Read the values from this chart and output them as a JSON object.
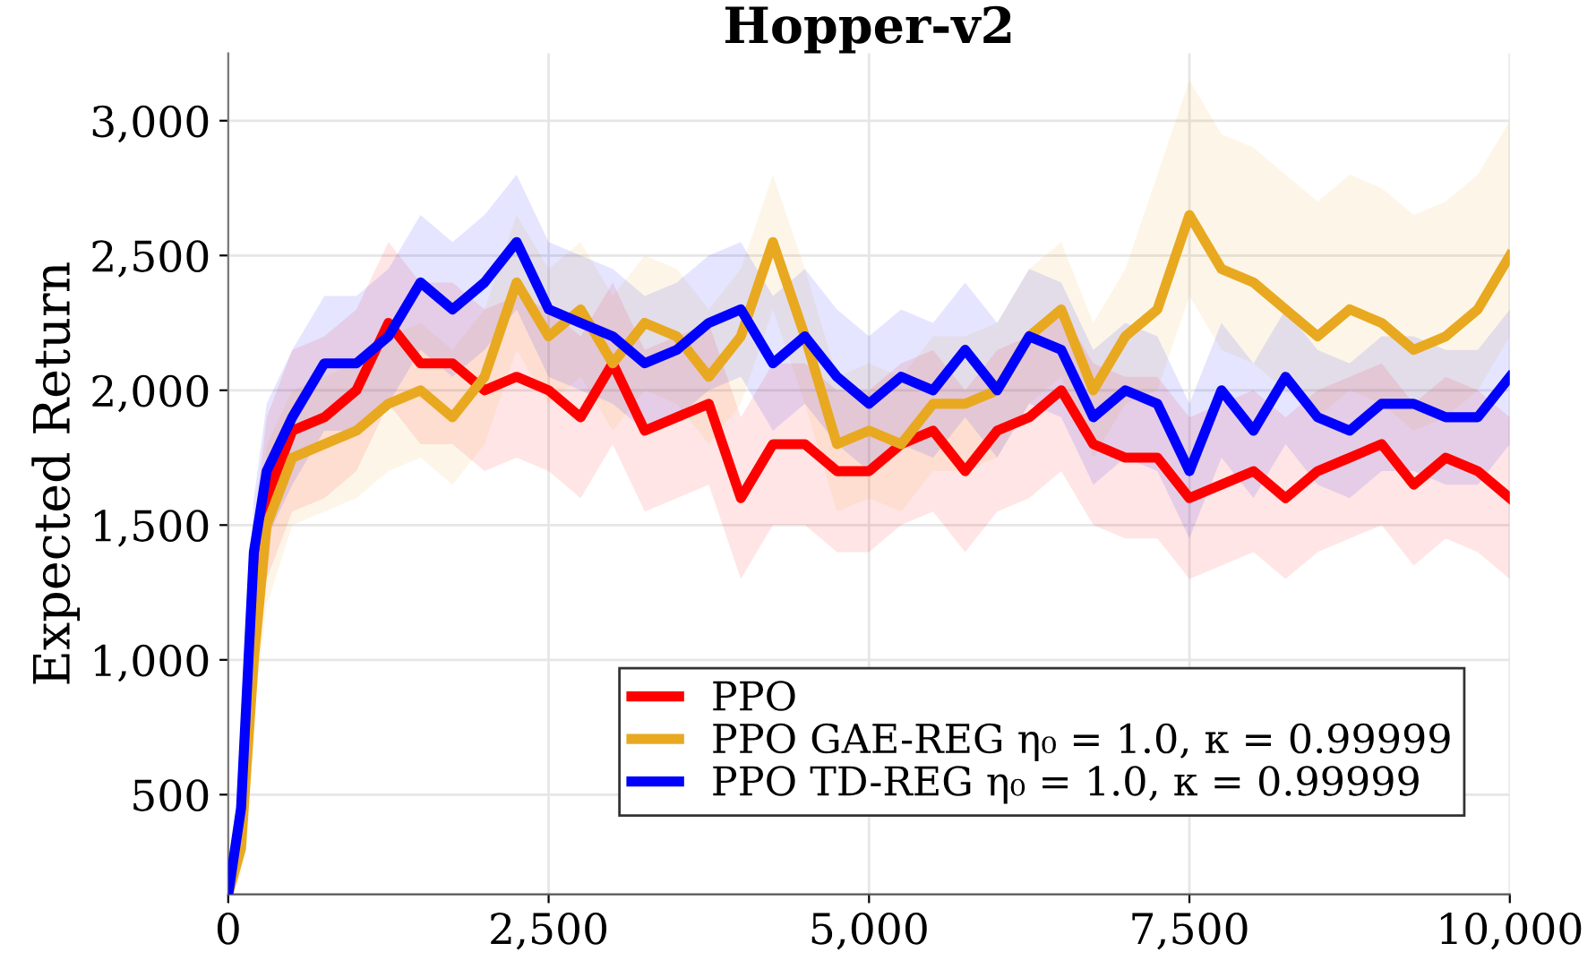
{
  "chart_data": {
    "type": "line",
    "title": "Hopper-v2",
    "ylabel": "Expected Return",
    "x": [
      0,
      100,
      200,
      300,
      500,
      750,
      1000,
      1250,
      1500,
      1750,
      2000,
      2250,
      2500,
      2750,
      3000,
      3250,
      3500,
      3750,
      4000,
      4250,
      4500,
      4750,
      5000,
      5250,
      5500,
      5750,
      6000,
      6250,
      6500,
      6750,
      7000,
      7250,
      7500,
      7750,
      8000,
      8250,
      8500,
      8750,
      9000,
      9250,
      9500,
      9750,
      10000
    ],
    "series": [
      {
        "name": "PPO",
        "color": "#ff0000",
        "values": [
          null,
          null,
          1300,
          1600,
          1850,
          1900,
          2000,
          2250,
          2100,
          2100,
          2000,
          2050,
          2000,
          1900,
          2100,
          1850,
          1900,
          1950,
          1600,
          1800,
          1800,
          1700,
          1700,
          1800,
          1850,
          1700,
          1850,
          1900,
          2000,
          1800,
          1750,
          1750,
          1600,
          1650,
          1700,
          1600,
          1700,
          1750,
          1800,
          1650,
          1750,
          1700,
          1600
        ],
        "lower": [
          130,
          300,
          1100,
          1300,
          1550,
          1600,
          1700,
          1950,
          1800,
          1800,
          1700,
          1750,
          1700,
          1600,
          1800,
          1550,
          1600,
          1650,
          1300,
          1500,
          1500,
          1400,
          1400,
          1500,
          1550,
          1400,
          1550,
          1600,
          1700,
          1500,
          1450,
          1450,
          1300,
          1350,
          1400,
          1300,
          1400,
          1450,
          1500,
          1350,
          1450,
          1400,
          1300
        ],
        "upper": [
          130,
          600,
          1500,
          1900,
          2150,
          2200,
          2300,
          2550,
          2400,
          2400,
          2300,
          2350,
          2300,
          2200,
          2400,
          2150,
          2200,
          2250,
          1900,
          2100,
          2100,
          2000,
          2000,
          2100,
          2150,
          2000,
          2150,
          2200,
          2300,
          2100,
          2050,
          2050,
          1900,
          1950,
          2000,
          1900,
          2000,
          2050,
          2100,
          1950,
          2050,
          2000,
          1900
        ]
      },
      {
        "name": "PPO GAE-REG η₀ = 1.0, κ = 0.99999",
        "color": "#e8a920",
        "values": [
          130,
          300,
          1000,
          1500,
          1750,
          1800,
          1850,
          1950,
          2000,
          1900,
          2050,
          2400,
          2200,
          2300,
          2100,
          2250,
          2200,
          2050,
          2200,
          2550,
          2200,
          1800,
          1850,
          1800,
          1950,
          1950,
          2000,
          2200,
          2300,
          2000,
          2200,
          2300,
          2650,
          2450,
          2400,
          2300,
          2200,
          2300,
          2250,
          2150,
          2200,
          2300,
          2500
        ],
        "lower": [
          130,
          200,
          800,
          1200,
          1500,
          1550,
          1600,
          1700,
          1750,
          1650,
          1800,
          2150,
          1950,
          2050,
          1850,
          2000,
          1950,
          1800,
          1950,
          2300,
          1950,
          1550,
          1600,
          1550,
          1700,
          1700,
          1750,
          1950,
          2050,
          1750,
          1950,
          2000,
          2350,
          2150,
          2100,
          2000,
          1900,
          2000,
          1950,
          1850,
          1900,
          2000,
          2200
        ],
        "upper": [
          130,
          500,
          1300,
          1800,
          2000,
          2050,
          2100,
          2200,
          2250,
          2150,
          2300,
          2650,
          2450,
          2550,
          2350,
          2500,
          2450,
          2300,
          2450,
          2800,
          2450,
          2050,
          2100,
          2050,
          2200,
          2200,
          2250,
          2450,
          2550,
          2250,
          2450,
          2800,
          3150,
          2950,
          2900,
          2800,
          2700,
          2800,
          2750,
          2650,
          2700,
          2800,
          3000
        ]
      },
      {
        "name": "PPO TD-REG η₀ = 1.0, κ = 0.99999",
        "color": "#0000ff",
        "values": [
          130,
          450,
          1400,
          1700,
          1900,
          2100,
          2100,
          2200,
          2400,
          2300,
          2400,
          2550,
          2300,
          2250,
          2200,
          2100,
          2150,
          2250,
          2300,
          2100,
          2200,
          2050,
          1950,
          2050,
          2000,
          2150,
          2000,
          2200,
          2150,
          1900,
          2000,
          1950,
          1700,
          2000,
          1850,
          2050,
          1900,
          1850,
          1950,
          1950,
          1900,
          1900,
          2050
        ],
        "lower": [
          130,
          300,
          1200,
          1450,
          1650,
          1850,
          1850,
          1950,
          2150,
          2050,
          2150,
          2300,
          2050,
          2000,
          1950,
          1850,
          1900,
          2000,
          2050,
          1850,
          1950,
          1800,
          1700,
          1800,
          1750,
          1900,
          1750,
          1950,
          1900,
          1650,
          1750,
          1700,
          1450,
          1750,
          1600,
          1800,
          1650,
          1600,
          1700,
          1700,
          1650,
          1650,
          1800
        ],
        "upper": [
          130,
          650,
          1600,
          1950,
          2150,
          2350,
          2350,
          2450,
          2650,
          2550,
          2650,
          2800,
          2550,
          2500,
          2450,
          2350,
          2400,
          2500,
          2550,
          2350,
          2450,
          2300,
          2200,
          2300,
          2250,
          2400,
          2250,
          2450,
          2400,
          2150,
          2250,
          2200,
          1950,
          2250,
          2100,
          2300,
          2150,
          2100,
          2200,
          2200,
          2150,
          2150,
          2300
        ]
      }
    ],
    "xlim": [
      0,
      10000
    ],
    "ylim": [
      130,
      3250
    ],
    "xticks": [
      0,
      {
        "value": 2500,
        "label": "2,500"
      },
      {
        "value": 5000,
        "label": "5,000"
      },
      {
        "value": 7500,
        "label": "7,500"
      },
      {
        "value": 10000,
        "label": "10,000"
      }
    ],
    "yticks": [
      500,
      {
        "value": 1000,
        "label": "1,000"
      },
      {
        "value": 1500,
        "label": "1,500"
      },
      {
        "value": 2000,
        "label": "2,000"
      },
      {
        "value": 2500,
        "label": "2,500"
      },
      {
        "value": 3000,
        "label": "3,000"
      }
    ],
    "grid": true,
    "legend": "bottom right",
    "marker": "none",
    "line_style": "solid"
  }
}
